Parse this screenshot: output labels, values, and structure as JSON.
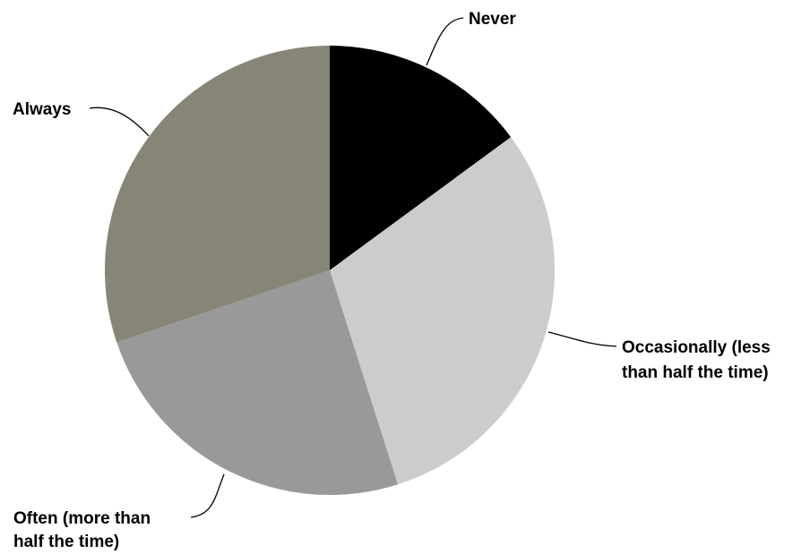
{
  "chart_data": {
    "type": "pie",
    "title": "",
    "legend": "none",
    "slices": [
      {
        "label": "Never",
        "lines": [
          "Never"
        ],
        "value": 14.9,
        "color": "#000000"
      },
      {
        "label": "Occasionally (less than half the time)",
        "lines": [
          "Occasionally (less",
          "than half the time)"
        ],
        "value": 30.2,
        "color": "#cccccc"
      },
      {
        "label": "Often (more than half the time)",
        "lines": [
          "Often (more than",
          "half the time)"
        ],
        "value": 24.7,
        "color": "#999999"
      },
      {
        "label": "Always",
        "lines": [
          "Always"
        ],
        "value": 30.2,
        "color": "#878576"
      }
    ]
  }
}
